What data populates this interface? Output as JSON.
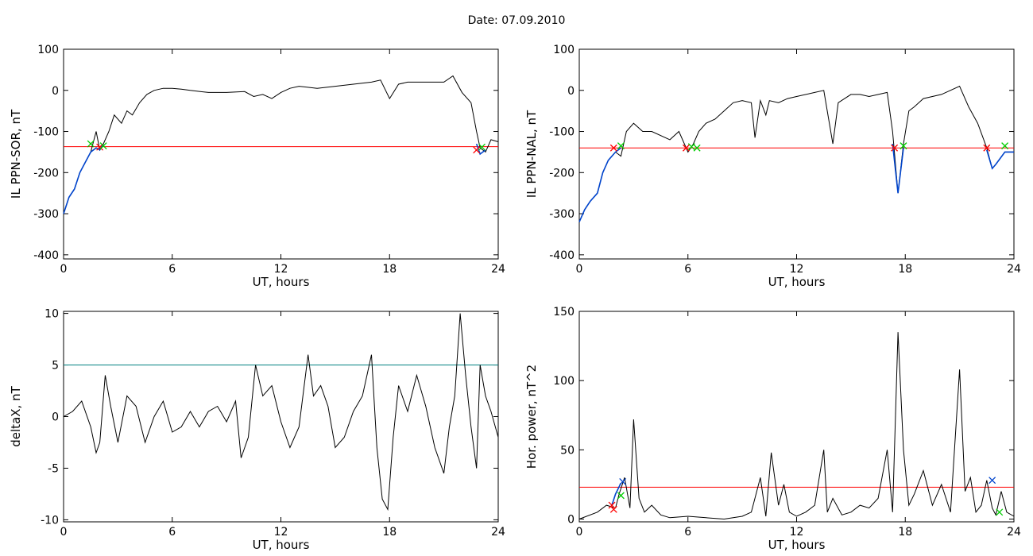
{
  "title": "Date:  07.09.2010",
  "chart_data": [
    {
      "type": "line",
      "xlabel": "UT, hours",
      "ylabel": "IL PPN-SOR, nT",
      "xlim": [
        0,
        24
      ],
      "ylim": [
        -410,
        100
      ],
      "xticks": [
        0,
        6,
        12,
        18,
        24
      ],
      "yticks": [
        -400,
        -300,
        -200,
        -100,
        0,
        100
      ],
      "threshold": {
        "value": -137,
        "color": "#ff0000"
      },
      "series": [
        {
          "color": "#000000",
          "x": [
            0,
            0.3,
            0.6,
            0.9,
            1.2,
            1.5,
            1.8,
            2.0,
            2.2,
            2.5,
            2.8,
            3.2,
            3.5,
            3.8,
            4.2,
            4.6,
            5.0,
            5.5,
            6.0,
            6.5,
            7.0,
            8.0,
            9.0,
            10.0,
            10.5,
            11.0,
            11.5,
            12.0,
            12.5,
            13.0,
            14.0,
            15.0,
            16.0,
            17.0,
            17.5,
            18.0,
            18.5,
            19.0,
            20.0,
            21.0,
            21.5,
            22.0,
            22.5,
            22.8,
            23.0,
            23.3,
            23.6,
            24.0
          ],
          "y": [
            -300,
            -260,
            -240,
            -200,
            -175,
            -150,
            -100,
            -145,
            -130,
            -100,
            -60,
            -80,
            -50,
            -60,
            -30,
            -10,
            0,
            5,
            5,
            3,
            0,
            -5,
            -5,
            -3,
            -15,
            -10,
            -20,
            -5,
            5,
            10,
            5,
            10,
            15,
            20,
            25,
            -20,
            15,
            20,
            20,
            20,
            35,
            -5,
            -30,
            -100,
            -140,
            -150,
            -120,
            -125
          ]
        },
        {
          "color": "#0044cc",
          "x": [
            0,
            0.3,
            0.6,
            0.9,
            1.2,
            1.5,
            1.8,
            2.0,
            2.2
          ],
          "y": [
            -300,
            -260,
            -240,
            -200,
            -175,
            -150,
            -140,
            -145,
            -130
          ]
        },
        {
          "color": "#0044cc",
          "x": [
            22.8,
            23.0,
            23.3
          ],
          "y": [
            -130,
            -155,
            -145
          ]
        }
      ],
      "markers": [
        {
          "x": 1.5,
          "y": -130,
          "color": "#00cc00"
        },
        {
          "x": 2.0,
          "y": -138,
          "color": "#ff0000"
        },
        {
          "x": 2.2,
          "y": -135,
          "color": "#00cc00"
        },
        {
          "x": 22.8,
          "y": -145,
          "color": "#ff0000"
        },
        {
          "x": 23.1,
          "y": -138,
          "color": "#00cc00"
        }
      ]
    },
    {
      "type": "line",
      "xlabel": "UT, hours",
      "ylabel": "IL PPN-NAL, nT",
      "xlim": [
        0,
        24
      ],
      "ylim": [
        -410,
        100
      ],
      "xticks": [
        0,
        6,
        12,
        18,
        24
      ],
      "yticks": [
        -400,
        -300,
        -200,
        -100,
        0,
        100
      ],
      "threshold": {
        "value": -140,
        "color": "#ff0000"
      },
      "series": [
        {
          "color": "#000000",
          "x": [
            0,
            0.3,
            0.6,
            1.0,
            1.3,
            1.6,
            2.0,
            2.3,
            2.6,
            3.0,
            3.5,
            4.0,
            5.0,
            5.5,
            6.0,
            6.3,
            6.6,
            7.0,
            7.5,
            8.0,
            8.5,
            9.0,
            9.5,
            9.7,
            10.0,
            10.3,
            10.5,
            11.0,
            11.5,
            12.0,
            13.0,
            13.5,
            14.0,
            14.3,
            15.0,
            15.5,
            16.0,
            17.0,
            17.3,
            17.6,
            17.9,
            18.2,
            18.5,
            19.0,
            20.0,
            21.0,
            21.5,
            22.0,
            22.5,
            22.8,
            23.0,
            23.5,
            24.0
          ],
          "y": [
            -320,
            -290,
            -270,
            -250,
            -200,
            -170,
            -150,
            -160,
            -100,
            -80,
            -100,
            -100,
            -120,
            -100,
            -150,
            -130,
            -100,
            -80,
            -70,
            -50,
            -30,
            -25,
            -30,
            -115,
            -25,
            -60,
            -25,
            -30,
            -20,
            -15,
            -5,
            0,
            -130,
            -30,
            -10,
            -10,
            -15,
            -5,
            -100,
            -250,
            -130,
            -50,
            -40,
            -20,
            -10,
            10,
            -40,
            -80,
            -140,
            -190,
            -180,
            -150,
            -150
          ]
        },
        {
          "color": "#0044cc",
          "x": [
            0,
            0.3,
            0.6,
            1.0,
            1.3,
            1.6,
            2.0,
            2.3
          ],
          "y": [
            -320,
            -290,
            -270,
            -250,
            -200,
            -170,
            -150,
            -140
          ]
        },
        {
          "color": "#0044cc",
          "x": [
            17.3,
            17.6,
            17.9
          ],
          "y": [
            -130,
            -250,
            -140
          ]
        },
        {
          "color": "#0044cc",
          "x": [
            22.5,
            22.8,
            23.0,
            23.5,
            24.0
          ],
          "y": [
            -145,
            -190,
            -180,
            -150,
            -150
          ]
        }
      ],
      "markers": [
        {
          "x": 1.9,
          "y": -140,
          "color": "#ff0000"
        },
        {
          "x": 2.3,
          "y": -135,
          "color": "#00cc00"
        },
        {
          "x": 5.9,
          "y": -140,
          "color": "#ff0000"
        },
        {
          "x": 6.2,
          "y": -137,
          "color": "#00cc00"
        },
        {
          "x": 6.5,
          "y": -140,
          "color": "#00cc00"
        },
        {
          "x": 17.4,
          "y": -140,
          "color": "#ff0000"
        },
        {
          "x": 17.9,
          "y": -135,
          "color": "#00cc00"
        },
        {
          "x": 22.5,
          "y": -140,
          "color": "#ff0000"
        },
        {
          "x": 23.5,
          "y": -135,
          "color": "#00cc00"
        }
      ]
    },
    {
      "type": "line",
      "xlabel": "UT, hours",
      "ylabel": "deltaX, nT",
      "xlim": [
        0,
        24
      ],
      "ylim": [
        -10.2,
        10.2
      ],
      "xticks": [
        0,
        6,
        12,
        18,
        24
      ],
      "yticks": [
        -10,
        -5,
        0,
        5,
        10
      ],
      "threshold": {
        "value": 5,
        "color": "#008080"
      },
      "series": [
        {
          "color": "#000000",
          "x": [
            0,
            0.5,
            1.0,
            1.5,
            1.8,
            2.0,
            2.3,
            2.6,
            3.0,
            3.5,
            4.0,
            4.5,
            5.0,
            5.5,
            6.0,
            6.5,
            7.0,
            7.5,
            8.0,
            8.5,
            9.0,
            9.5,
            9.8,
            10.2,
            10.6,
            11.0,
            11.5,
            12.0,
            12.5,
            13.0,
            13.5,
            13.8,
            14.2,
            14.6,
            15.0,
            15.5,
            16.0,
            16.5,
            17.0,
            17.3,
            17.6,
            17.9,
            18.2,
            18.5,
            19.0,
            19.5,
            20.0,
            20.5,
            21.0,
            21.3,
            21.6,
            21.9,
            22.2,
            22.5,
            22.8,
            23.0,
            23.3,
            23.6,
            24.0
          ],
          "y": [
            0,
            0.5,
            1.5,
            -1,
            -3.5,
            -2.5,
            4,
            1,
            -2.5,
            2,
            1,
            -2.5,
            0,
            1.5,
            -1.5,
            -1,
            0.5,
            -1,
            0.5,
            1,
            -0.5,
            1.5,
            -4,
            -2,
            5,
            2,
            3,
            -0.5,
            -3,
            -1,
            6,
            2,
            3,
            1,
            -3,
            -2,
            0.5,
            2,
            6,
            -3,
            -8,
            -9,
            -2,
            3,
            0.5,
            4,
            1,
            -3,
            -5.5,
            -1,
            2,
            10,
            4,
            -1,
            -5,
            5,
            2,
            0.5,
            -2
          ]
        }
      ],
      "markers": []
    },
    {
      "type": "line",
      "xlabel": "UT, hours",
      "ylabel": "Hor. power, nT^2",
      "xlim": [
        0,
        24
      ],
      "ylim": [
        -2,
        150
      ],
      "xticks": [
        0,
        6,
        12,
        18,
        24
      ],
      "yticks": [
        0,
        50,
        100,
        150
      ],
      "threshold": {
        "value": 23,
        "color": "#ff0000"
      },
      "series": [
        {
          "color": "#000000",
          "x": [
            0,
            1.0,
            1.5,
            2.0,
            2.2,
            2.5,
            2.8,
            3.0,
            3.3,
            3.6,
            4.0,
            4.5,
            5.0,
            6.0,
            7.0,
            8.0,
            9.0,
            9.5,
            10.0,
            10.3,
            10.6,
            11.0,
            11.3,
            11.6,
            12.0,
            12.5,
            13.0,
            13.5,
            13.7,
            14.0,
            14.5,
            15.0,
            15.5,
            16.0,
            16.5,
            17.0,
            17.3,
            17.6,
            17.9,
            18.2,
            18.5,
            19.0,
            19.5,
            20.0,
            20.5,
            21.0,
            21.3,
            21.6,
            21.9,
            22.2,
            22.5,
            22.8,
            23.0,
            23.3,
            23.6,
            24.0
          ],
          "y": [
            0,
            5,
            10,
            8,
            18,
            30,
            8,
            72,
            15,
            5,
            10,
            3,
            1,
            2,
            1,
            0,
            2,
            5,
            30,
            2,
            48,
            10,
            25,
            5,
            2,
            5,
            10,
            50,
            5,
            15,
            3,
            5,
            10,
            8,
            15,
            50,
            5,
            135,
            50,
            10,
            18,
            35,
            10,
            25,
            5,
            108,
            20,
            30,
            5,
            10,
            28,
            8,
            3,
            20,
            5,
            2
          ]
        },
        {
          "color": "#0044cc",
          "x": [
            1.8,
            2.0,
            2.3
          ],
          "y": [
            10,
            18,
            26
          ]
        }
      ],
      "markers": [
        {
          "x": 1.8,
          "y": 10,
          "color": "#ff0000"
        },
        {
          "x": 1.9,
          "y": 7,
          "color": "#ff0000"
        },
        {
          "x": 2.3,
          "y": 17,
          "color": "#00cc00"
        },
        {
          "x": 2.4,
          "y": 27,
          "color": "#0044cc"
        },
        {
          "x": 22.8,
          "y": 28,
          "color": "#0044cc"
        },
        {
          "x": 23.2,
          "y": 5,
          "color": "#00cc00"
        }
      ]
    }
  ]
}
